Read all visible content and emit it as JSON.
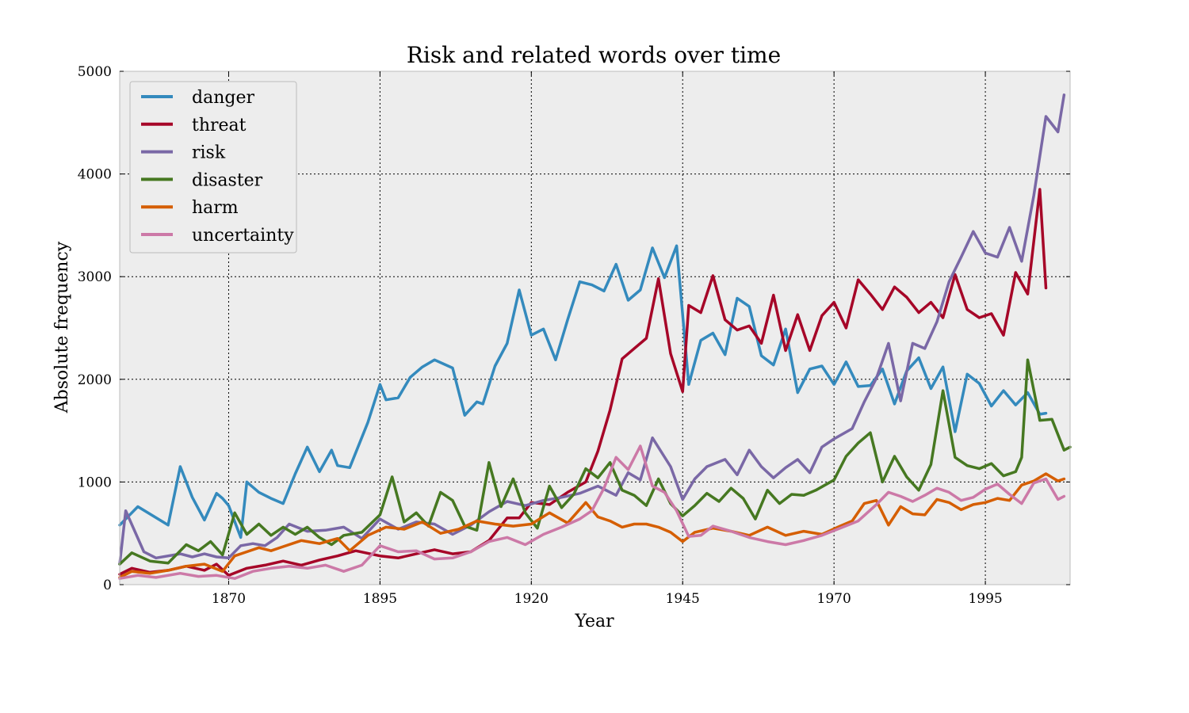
{
  "chart_data": {
    "type": "line",
    "title": "Risk and related words over time",
    "xlabel": "Year",
    "ylabel": "Absolute frequency",
    "xlim": [
      1852,
      2009
    ],
    "ylim": [
      0,
      5000
    ],
    "xticks": [
      1870,
      1895,
      1920,
      1945,
      1970,
      1995
    ],
    "yticks": [
      0,
      1000,
      2000,
      3000,
      4000,
      5000
    ],
    "grid": true,
    "legend_position": "top-left",
    "background": "#ededed",
    "series": [
      {
        "name": "danger",
        "color": "#348abd",
        "x": [
          1852,
          1855,
          1860,
          1862,
          1864,
          1866,
          1868,
          1869,
          1870,
          1872,
          1873,
          1875,
          1877,
          1879,
          1881,
          1883,
          1885,
          1887,
          1888,
          1890,
          1893,
          1895,
          1896,
          1898,
          1900,
          1902,
          1904,
          1907,
          1909,
          1911,
          1912,
          1914,
          1916,
          1918,
          1920,
          1922,
          1924,
          1926,
          1928,
          1930,
          1932,
          1934,
          1936,
          1938,
          1940,
          1942,
          1944,
          1946,
          1948,
          1950,
          1952,
          1954,
          1956,
          1958,
          1960,
          1962,
          1964,
          1966,
          1968,
          1970,
          1972,
          1974,
          1976,
          1978,
          1980,
          1982,
          1984,
          1986,
          1988,
          1990,
          1992,
          1994,
          1996,
          1998,
          2000,
          2002,
          2004,
          2005
        ],
        "values": [
          580,
          760,
          580,
          1150,
          850,
          630,
          890,
          840,
          770,
          460,
          1000,
          900,
          840,
          790,
          1080,
          1340,
          1100,
          1310,
          1160,
          1140,
          1580,
          1950,
          1800,
          1820,
          2020,
          2120,
          2190,
          2110,
          1650,
          1780,
          1760,
          2130,
          2350,
          2870,
          2430,
          2490,
          2190,
          2580,
          2950,
          2920,
          2860,
          3120,
          2770,
          2870,
          3280,
          2990,
          3300,
          1950,
          2380,
          2450,
          2240,
          2790,
          2710,
          2230,
          2140,
          2490,
          1870,
          2100,
          2130,
          1950,
          2170,
          1930,
          1940,
          2100,
          1760,
          2080,
          2210,
          1910,
          2120,
          1490,
          2050,
          1960,
          1740,
          1890,
          1750,
          1870,
          1660,
          1670
        ]
      },
      {
        "name": "threat",
        "color": "#a60628",
        "x": [
          1852,
          1854,
          1857,
          1860,
          1863,
          1866,
          1868,
          1870,
          1873,
          1876,
          1879,
          1882,
          1885,
          1888,
          1891,
          1895,
          1898,
          1901,
          1904,
          1907,
          1910,
          1913,
          1916,
          1918,
          1920,
          1923,
          1926,
          1929,
          1931,
          1933,
          1935,
          1937,
          1939,
          1941,
          1943,
          1945,
          1946,
          1948,
          1950,
          1952,
          1954,
          1956,
          1958,
          1960,
          1962,
          1964,
          1966,
          1968,
          1970,
          1972,
          1974,
          1976,
          1978,
          1980,
          1982,
          1984,
          1986,
          1988,
          1990,
          1992,
          1994,
          1996,
          1998,
          2000,
          2002,
          2004,
          2005
        ],
        "values": [
          100,
          160,
          120,
          140,
          180,
          140,
          200,
          90,
          160,
          190,
          230,
          190,
          240,
          280,
          330,
          280,
          260,
          300,
          340,
          300,
          320,
          430,
          650,
          650,
          800,
          780,
          900,
          1000,
          1300,
          1700,
          2200,
          2300,
          2400,
          2980,
          2250,
          1880,
          2720,
          2650,
          3010,
          2580,
          2480,
          2520,
          2350,
          2820,
          2280,
          2630,
          2280,
          2620,
          2750,
          2500,
          2970,
          2830,
          2680,
          2900,
          2800,
          2650,
          2750,
          2600,
          3020,
          2680,
          2600,
          2640,
          2430,
          3040,
          2830,
          3850,
          2890
        ]
      },
      {
        "name": "risk",
        "color": "#7a68a6",
        "x": [
          1852,
          1853,
          1856,
          1858,
          1862,
          1864,
          1866,
          1868,
          1870,
          1872,
          1874,
          1876,
          1878,
          1880,
          1883,
          1886,
          1889,
          1892,
          1895,
          1898,
          1901,
          1904,
          1907,
          1910,
          1913,
          1916,
          1919,
          1922,
          1925,
          1928,
          1931,
          1934,
          1936,
          1938,
          1940,
          1943,
          1945,
          1947,
          1949,
          1952,
          1954,
          1956,
          1958,
          1960,
          1962,
          1964,
          1966,
          1968,
          1970,
          1973,
          1975,
          1977,
          1979,
          1981,
          1983,
          1985,
          1987,
          1989,
          1991,
          1993,
          1995,
          1997,
          1999,
          2001,
          2003,
          2005,
          2007,
          2008
        ],
        "values": [
          200,
          720,
          320,
          260,
          300,
          270,
          300,
          270,
          260,
          380,
          400,
          380,
          460,
          590,
          520,
          530,
          560,
          450,
          640,
          540,
          610,
          590,
          490,
          580,
          710,
          810,
          770,
          820,
          850,
          890,
          960,
          870,
          1090,
          1020,
          1430,
          1150,
          830,
          1030,
          1150,
          1220,
          1070,
          1310,
          1150,
          1040,
          1140,
          1220,
          1090,
          1340,
          1420,
          1520,
          1780,
          2010,
          2350,
          1790,
          2350,
          2300,
          2560,
          2950,
          3190,
          3440,
          3230,
          3190,
          3480,
          3150,
          3790,
          4560,
          4410,
          4770
        ]
      },
      {
        "name": "disaster",
        "color": "#467821",
        "x": [
          1852,
          1854,
          1857,
          1860,
          1863,
          1865,
          1867,
          1869,
          1871,
          1873,
          1875,
          1877,
          1879,
          1881,
          1883,
          1885,
          1887,
          1889,
          1892,
          1895,
          1897,
          1899,
          1901,
          1903,
          1905,
          1907,
          1909,
          1911,
          1913,
          1915,
          1917,
          1919,
          1921,
          1923,
          1925,
          1927,
          1929,
          1931,
          1933,
          1935,
          1937,
          1939,
          1941,
          1943,
          1945,
          1947,
          1949,
          1951,
          1953,
          1955,
          1957,
          1959,
          1961,
          1963,
          1965,
          1967,
          1970,
          1972,
          1974,
          1976,
          1978,
          1980,
          1982,
          1984,
          1986,
          1988,
          1990,
          1992,
          1994,
          1996,
          1998,
          2000,
          2001,
          2002,
          2004,
          2006,
          2008,
          2009
        ],
        "values": [
          200,
          310,
          230,
          210,
          390,
          330,
          420,
          290,
          700,
          490,
          590,
          480,
          560,
          490,
          560,
          460,
          390,
          480,
          510,
          680,
          1050,
          610,
          700,
          570,
          900,
          820,
          570,
          530,
          1190,
          760,
          1030,
          700,
          550,
          960,
          750,
          880,
          1130,
          1040,
          1190,
          920,
          870,
          770,
          1030,
          790,
          670,
          770,
          890,
          810,
          940,
          840,
          640,
          920,
          790,
          880,
          870,
          920,
          1020,
          1250,
          1380,
          1480,
          1000,
          1250,
          1050,
          920,
          1170,
          1890,
          1240,
          1160,
          1130,
          1180,
          1060,
          1100,
          1240,
          2190,
          1600,
          1610,
          1310,
          1340
        ]
      },
      {
        "name": "harm",
        "color": "#d55e00",
        "x": [
          1852,
          1854,
          1857,
          1860,
          1863,
          1866,
          1869,
          1871,
          1873,
          1875,
          1877,
          1879,
          1882,
          1885,
          1888,
          1890,
          1893,
          1896,
          1899,
          1902,
          1905,
          1908,
          1911,
          1914,
          1917,
          1920,
          1923,
          1926,
          1929,
          1931,
          1933,
          1935,
          1937,
          1939,
          1941,
          1943,
          1945,
          1947,
          1950,
          1953,
          1956,
          1959,
          1962,
          1965,
          1968,
          1971,
          1973,
          1975,
          1977,
          1979,
          1981,
          1983,
          1985,
          1987,
          1989,
          1991,
          1993,
          1995,
          1997,
          1999,
          2001,
          2003,
          2005,
          2007,
          2008
        ],
        "values": [
          70,
          130,
          110,
          140,
          180,
          200,
          130,
          280,
          320,
          360,
          330,
          370,
          430,
          400,
          450,
          330,
          480,
          560,
          540,
          610,
          500,
          540,
          620,
          590,
          570,
          590,
          700,
          600,
          800,
          660,
          620,
          560,
          590,
          590,
          560,
          510,
          420,
          510,
          550,
          520,
          480,
          560,
          480,
          520,
          490,
          570,
          620,
          790,
          820,
          580,
          760,
          690,
          680,
          830,
          800,
          730,
          780,
          800,
          840,
          820,
          970,
          1010,
          1080,
          1010,
          1030
        ]
      },
      {
        "name": "uncertainty",
        "color": "#cc79a7",
        "x": [
          1852,
          1855,
          1858,
          1862,
          1865,
          1868,
          1871,
          1874,
          1877,
          1880,
          1883,
          1886,
          1889,
          1892,
          1895,
          1898,
          1901,
          1904,
          1907,
          1910,
          1913,
          1916,
          1919,
          1922,
          1925,
          1928,
          1930,
          1932,
          1934,
          1936,
          1938,
          1940,
          1942,
          1944,
          1946,
          1948,
          1950,
          1953,
          1956,
          1959,
          1962,
          1965,
          1968,
          1971,
          1974,
          1977,
          1979,
          1981,
          1983,
          1985,
          1987,
          1989,
          1991,
          1993,
          1995,
          1997,
          1999,
          2001,
          2003,
          2005,
          2007,
          2008
        ],
        "values": [
          60,
          90,
          70,
          110,
          80,
          90,
          60,
          130,
          160,
          180,
          160,
          190,
          130,
          190,
          380,
          320,
          330,
          250,
          260,
          320,
          420,
          460,
          390,
          490,
          560,
          640,
          720,
          940,
          1240,
          1120,
          1350,
          960,
          900,
          720,
          470,
          480,
          570,
          520,
          460,
          420,
          390,
          430,
          480,
          550,
          620,
          780,
          900,
          860,
          810,
          870,
          940,
          900,
          820,
          850,
          930,
          980,
          880,
          790,
          990,
          1030,
          830,
          860
        ]
      }
    ]
  }
}
